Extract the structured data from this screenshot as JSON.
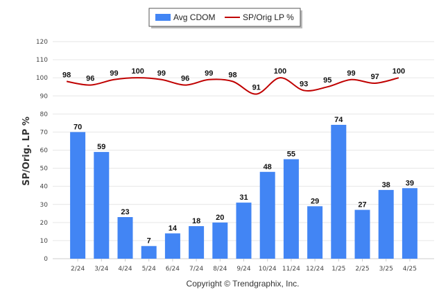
{
  "chart_data": {
    "type": "bar",
    "categories": [
      "2/24",
      "3/24",
      "4/24",
      "5/24",
      "6/24",
      "7/24",
      "8/24",
      "9/24",
      "10/24",
      "11/24",
      "12/24",
      "1/25",
      "2/25",
      "3/25",
      "4/25"
    ],
    "series": [
      {
        "name": "Avg CDOM",
        "type": "bar",
        "color": "#4285f4",
        "values": [
          70,
          59,
          23,
          7,
          14,
          18,
          20,
          31,
          48,
          55,
          29,
          74,
          27,
          38,
          39
        ]
      },
      {
        "name": "SP/Orig LP %",
        "type": "line",
        "color": "#c00000",
        "values": [
          98,
          96,
          99,
          100,
          99,
          96,
          99,
          98,
          91,
          100,
          93,
          95,
          99,
          97,
          100
        ]
      }
    ],
    "ylabel": "SP/Orig. LP %",
    "xlabel": "",
    "ylim": [
      0,
      120
    ],
    "yticks": [
      0,
      10,
      20,
      30,
      40,
      50,
      60,
      70,
      80,
      90,
      100,
      110,
      120
    ],
    "grid": true,
    "legend_position": "top-center"
  },
  "footer": {
    "copyright": "Copyright © Trendgraphix, Inc."
  }
}
